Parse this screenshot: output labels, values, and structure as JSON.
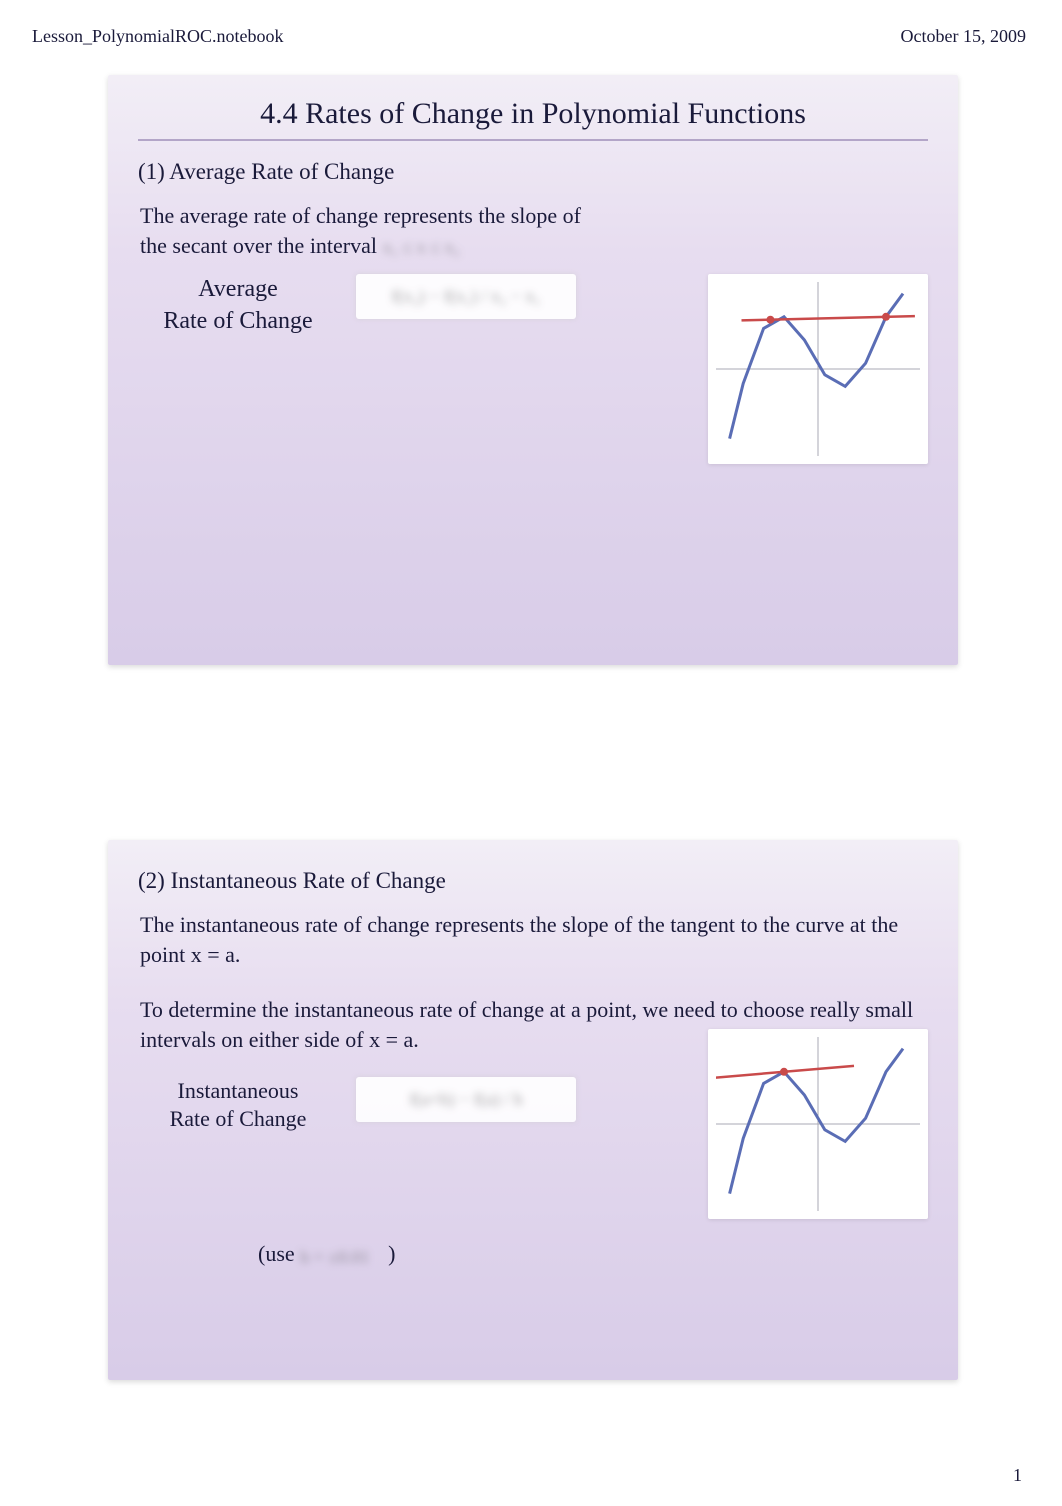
{
  "header": {
    "notebook": "Lesson_PolynomialROC.notebook",
    "date": "October 15, 2009"
  },
  "page_number": "1",
  "slide1": {
    "title": "4.4 Rates of Change in Polynomial Functions",
    "sub": "(1)  Average Rate of Change",
    "desc_line1": "The average rate of change represents the slope of",
    "desc_line2": "the secant over the interval",
    "hidden_interval": "x₁ ≤ x ≤ x₂",
    "label_line1": "Average",
    "label_line2": "Rate of Change",
    "formula_hidden": "f(x₂) − f(x₁) / x₂ − x₁",
    "chart": {
      "type": "line",
      "x_range": [
        -3,
        3
      ],
      "y_range": [
        -3,
        3
      ],
      "curve_points": [
        [
          -2.6,
          -2.4
        ],
        [
          -2.2,
          -0.5
        ],
        [
          -1.6,
          1.4
        ],
        [
          -1.0,
          1.8
        ],
        [
          -0.4,
          1.0
        ],
        [
          0.2,
          -0.2
        ],
        [
          0.8,
          -0.6
        ],
        [
          1.4,
          0.2
        ],
        [
          2.0,
          1.8
        ],
        [
          2.5,
          2.6
        ]
      ],
      "curve_color": "#5a6db5",
      "curve_width": 3,
      "secant_p1": [
        -1.4,
        1.7
      ],
      "secant_p2": [
        2.0,
        1.8
      ],
      "secant_color": "#c94a4a",
      "secant_width": 2.5,
      "point_color": "#c94a4a",
      "axis_color": "#a8a8b4",
      "background": "#ffffff"
    }
  },
  "slide2": {
    "sub": "(2)  Instantaneous Rate of Change",
    "p1": "The instantaneous rate of change represents the slope of the tangent to the curve at the point x = a.",
    "p2": "To determine the instantaneous rate of change at a point, we need to choose really small intervals on either side of x = a.",
    "label_line1": "Instantaneous",
    "label_line2": "Rate of Change",
    "formula_hidden": "f(a+h) − f(a) / h",
    "use_prefix": "(use ",
    "use_hidden": "h = ±0.01",
    "use_suffix": ")",
    "chart": {
      "type": "line",
      "x_range": [
        -3,
        3
      ],
      "y_range": [
        -3,
        3
      ],
      "curve_points": [
        [
          -2.6,
          -2.4
        ],
        [
          -2.2,
          -0.5
        ],
        [
          -1.6,
          1.4
        ],
        [
          -1.0,
          1.8
        ],
        [
          -0.4,
          1.0
        ],
        [
          0.2,
          -0.2
        ],
        [
          0.8,
          -0.6
        ],
        [
          1.4,
          0.2
        ],
        [
          2.0,
          1.8
        ],
        [
          2.5,
          2.6
        ]
      ],
      "curve_color": "#5a6db5",
      "curve_width": 3,
      "tangent_point": [
        -1.0,
        1.8
      ],
      "tangent_slope": 0.1,
      "tangent_color": "#c94a4a",
      "tangent_width": 2.5,
      "point_color": "#c94a4a",
      "axis_color": "#a8a8b4",
      "background": "#ffffff"
    }
  }
}
